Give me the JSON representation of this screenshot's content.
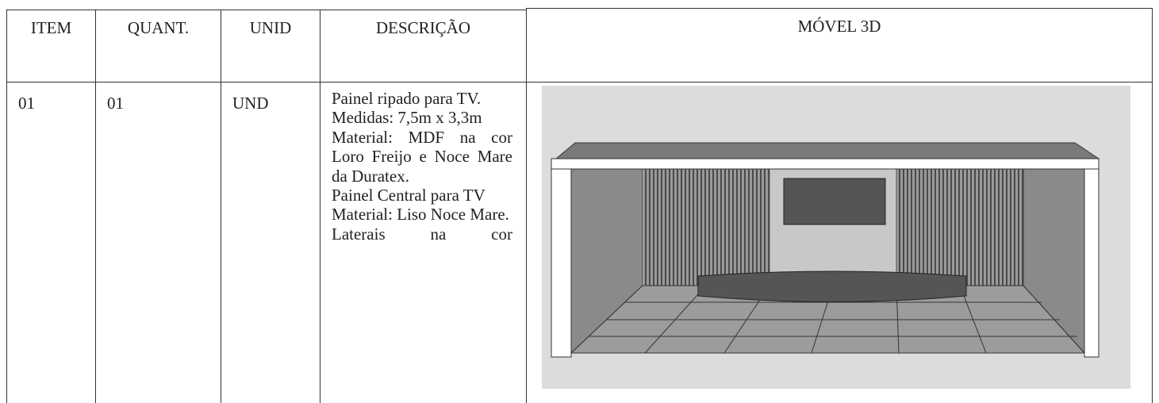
{
  "table": {
    "header": [
      "ITEM",
      "QUANT.",
      "UNID",
      "DESCRIÇÃO",
      "MÓVEL 3D"
    ],
    "rows": [
      [
        "01",
        "01",
        "UND",
        [
          "Painel ripado para TV.",
          "Medidas: 7,5m x 3,3m",
          "Material: MDF na cor Loro Freijo e Noce Mare da Duratex.",
          "Painel Central para TV",
          "Material: Liso Noce Mare.",
          "Laterais na cor"
        ]
      ]
    ]
  }
}
